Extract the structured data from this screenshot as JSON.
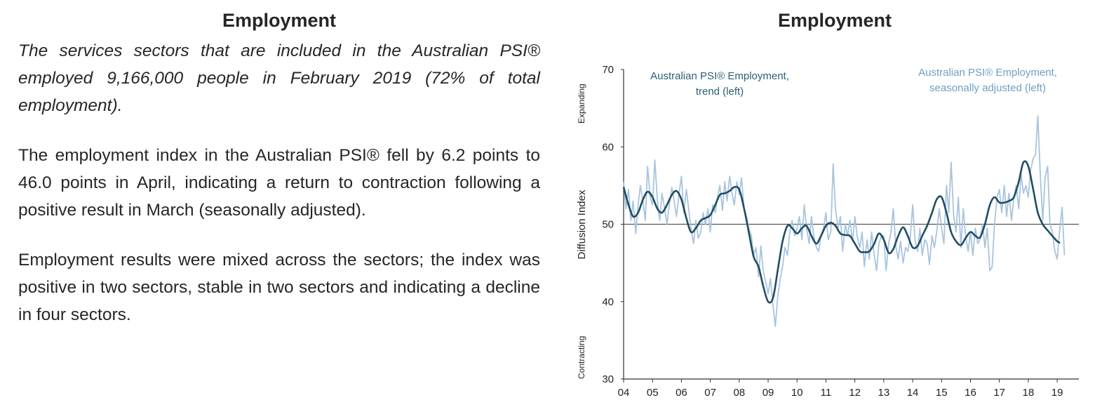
{
  "text_panel": {
    "title": "Employment",
    "para1": "The services sectors that are included in the Australian PSI® employed 9,166,000 people in February 2019 (72% of total employment).",
    "para2": "The employment index in the Australian PSI® fell by 6.2 points to 46.0 points in April, indicating a return to contraction following a positive result in March (seasonally adjusted).",
    "para3": "Employment results were mixed across the sectors; the index was positive in two sectors, stable in two sectors and indicating a decline in four sectors."
  },
  "chart_data": {
    "type": "line",
    "title": "Employment",
    "ylabel": "Diffusion Index",
    "side_labels": {
      "top": "Expanding",
      "bottom": "Contracting"
    },
    "ylim": [
      30,
      70
    ],
    "yticks": [
      "30",
      "40",
      "50",
      "60",
      "70"
    ],
    "xlim": [
      2004,
      2019.75
    ],
    "xticks": [
      {
        "x": 2004,
        "label": "04"
      },
      {
        "x": 2005,
        "label": "05"
      },
      {
        "x": 2006,
        "label": "06"
      },
      {
        "x": 2007,
        "label": "07"
      },
      {
        "x": 2008,
        "label": "08"
      },
      {
        "x": 2009,
        "label": "09"
      },
      {
        "x": 2010,
        "label": "10"
      },
      {
        "x": 2011,
        "label": "11"
      },
      {
        "x": 2012,
        "label": "12"
      },
      {
        "x": 2013,
        "label": "13"
      },
      {
        "x": 2014,
        "label": "14"
      },
      {
        "x": 2015,
        "label": "15"
      },
      {
        "x": 2016,
        "label": "16"
      },
      {
        "x": 2017,
        "label": "17"
      },
      {
        "x": 2018,
        "label": "18"
      },
      {
        "x": 2019,
        "label": "19"
      }
    ],
    "reference_line": 50,
    "colors": {
      "trend": "#1f4e63",
      "sa": "#a9c4df",
      "reference": "#555555"
    },
    "series": [
      {
        "name": "Australian PSI® Employment, seasonally adjusted (left)",
        "style": "thin-light",
        "points": [
          [
            2004.0,
            55.5
          ],
          [
            2004.08,
            52.0
          ],
          [
            2004.17,
            54.5
          ],
          [
            2004.25,
            50.5
          ],
          [
            2004.33,
            53.0
          ],
          [
            2004.42,
            48.8
          ],
          [
            2004.5,
            52.5
          ],
          [
            2004.58,
            55.0
          ],
          [
            2004.67,
            53.0
          ],
          [
            2004.75,
            50.5
          ],
          [
            2004.83,
            57.5
          ],
          [
            2004.92,
            53.5
          ],
          [
            2005.0,
            52.5
          ],
          [
            2005.08,
            58.3
          ],
          [
            2005.17,
            53.0
          ],
          [
            2005.25,
            50.5
          ],
          [
            2005.33,
            54.0
          ],
          [
            2005.42,
            52.0
          ],
          [
            2005.5,
            50.0
          ],
          [
            2005.58,
            52.5
          ],
          [
            2005.67,
            54.8
          ],
          [
            2005.75,
            53.0
          ],
          [
            2005.83,
            51.0
          ],
          [
            2005.92,
            54.0
          ],
          [
            2006.0,
            56.2
          ],
          [
            2006.08,
            51.5
          ],
          [
            2006.17,
            54.5
          ],
          [
            2006.25,
            52.0
          ],
          [
            2006.33,
            49.5
          ],
          [
            2006.42,
            47.5
          ],
          [
            2006.5,
            50.5
          ],
          [
            2006.58,
            48.2
          ],
          [
            2006.67,
            49.0
          ],
          [
            2006.75,
            51.5
          ],
          [
            2006.83,
            50.0
          ],
          [
            2006.92,
            52.0
          ],
          [
            2007.0,
            49.0
          ],
          [
            2007.08,
            52.5
          ],
          [
            2007.17,
            51.5
          ],
          [
            2007.25,
            53.5
          ],
          [
            2007.33,
            55.0
          ],
          [
            2007.42,
            51.8
          ],
          [
            2007.5,
            55.5
          ],
          [
            2007.58,
            53.0
          ],
          [
            2007.67,
            56.2
          ],
          [
            2007.75,
            54.0
          ],
          [
            2007.83,
            52.5
          ],
          [
            2007.92,
            55.5
          ],
          [
            2008.0,
            53.8
          ],
          [
            2008.08,
            56.0
          ],
          [
            2008.17,
            52.0
          ],
          [
            2008.25,
            51.0
          ],
          [
            2008.33,
            49.5
          ],
          [
            2008.42,
            48.5
          ],
          [
            2008.5,
            46.0
          ],
          [
            2008.58,
            47.0
          ],
          [
            2008.67,
            43.2
          ],
          [
            2008.75,
            47.2
          ],
          [
            2008.83,
            44.0
          ],
          [
            2008.92,
            42.5
          ],
          [
            2009.0,
            41.0
          ],
          [
            2009.08,
            43.0
          ],
          [
            2009.17,
            39.5
          ],
          [
            2009.25,
            36.8
          ],
          [
            2009.33,
            40.5
          ],
          [
            2009.42,
            43.0
          ],
          [
            2009.5,
            44.5
          ],
          [
            2009.58,
            47.0
          ],
          [
            2009.67,
            46.0
          ],
          [
            2009.75,
            49.0
          ],
          [
            2009.83,
            50.5
          ],
          [
            2009.92,
            48.5
          ],
          [
            2010.0,
            49.5
          ],
          [
            2010.08,
            51.0
          ],
          [
            2010.17,
            48.0
          ],
          [
            2010.25,
            52.5
          ],
          [
            2010.33,
            49.5
          ],
          [
            2010.42,
            47.5
          ],
          [
            2010.5,
            51.0
          ],
          [
            2010.58,
            48.5
          ],
          [
            2010.67,
            47.0
          ],
          [
            2010.75,
            46.5
          ],
          [
            2010.83,
            48.5
          ],
          [
            2010.92,
            49.5
          ],
          [
            2011.0,
            51.5
          ],
          [
            2011.08,
            48.0
          ],
          [
            2011.17,
            49.0
          ],
          [
            2011.25,
            57.8
          ],
          [
            2011.33,
            52.0
          ],
          [
            2011.42,
            49.5
          ],
          [
            2011.5,
            51.0
          ],
          [
            2011.58,
            46.5
          ],
          [
            2011.67,
            50.0
          ],
          [
            2011.75,
            48.5
          ],
          [
            2011.83,
            50.5
          ],
          [
            2011.92,
            47.8
          ],
          [
            2012.0,
            51.0
          ],
          [
            2012.08,
            48.5
          ],
          [
            2012.17,
            47.0
          ],
          [
            2012.25,
            49.0
          ],
          [
            2012.33,
            44.5
          ],
          [
            2012.42,
            48.0
          ],
          [
            2012.5,
            45.5
          ],
          [
            2012.58,
            49.0
          ],
          [
            2012.67,
            46.0
          ],
          [
            2012.75,
            44.0
          ],
          [
            2012.83,
            47.5
          ],
          [
            2012.92,
            48.5
          ],
          [
            2013.0,
            48.5
          ],
          [
            2013.08,
            44.0
          ],
          [
            2013.17,
            47.5
          ],
          [
            2013.25,
            49.0
          ],
          [
            2013.33,
            52.0
          ],
          [
            2013.42,
            47.0
          ],
          [
            2013.5,
            45.5
          ],
          [
            2013.58,
            47.8
          ],
          [
            2013.67,
            45.0
          ],
          [
            2013.75,
            47.0
          ],
          [
            2013.83,
            46.5
          ],
          [
            2013.92,
            48.5
          ],
          [
            2014.0,
            52.5
          ],
          [
            2014.08,
            48.0
          ],
          [
            2014.17,
            46.5
          ],
          [
            2014.25,
            49.5
          ],
          [
            2014.33,
            46.0
          ],
          [
            2014.42,
            48.0
          ],
          [
            2014.5,
            47.5
          ],
          [
            2014.58,
            44.8
          ],
          [
            2014.67,
            48.5
          ],
          [
            2014.75,
            47.0
          ],
          [
            2014.83,
            49.0
          ],
          [
            2014.92,
            52.0
          ],
          [
            2015.0,
            49.5
          ],
          [
            2015.08,
            47.5
          ],
          [
            2015.17,
            55.0
          ],
          [
            2015.25,
            51.5
          ],
          [
            2015.33,
            58.0
          ],
          [
            2015.42,
            51.0
          ],
          [
            2015.5,
            49.0
          ],
          [
            2015.58,
            53.5
          ],
          [
            2015.67,
            47.0
          ],
          [
            2015.75,
            52.0
          ],
          [
            2015.83,
            48.5
          ],
          [
            2015.92,
            46.5
          ],
          [
            2016.0,
            49.0
          ],
          [
            2016.08,
            46.0
          ],
          [
            2016.17,
            49.5
          ],
          [
            2016.25,
            47.5
          ],
          [
            2016.33,
            48.0
          ],
          [
            2016.42,
            50.0
          ],
          [
            2016.5,
            47.0
          ],
          [
            2016.58,
            49.5
          ],
          [
            2016.67,
            44.0
          ],
          [
            2016.75,
            44.5
          ],
          [
            2016.83,
            50.0
          ],
          [
            2016.92,
            53.5
          ],
          [
            2017.0,
            54.5
          ],
          [
            2017.08,
            51.5
          ],
          [
            2017.17,
            55.0
          ],
          [
            2017.25,
            51.0
          ],
          [
            2017.33,
            54.0
          ],
          [
            2017.42,
            50.5
          ],
          [
            2017.5,
            53.5
          ],
          [
            2017.58,
            55.0
          ],
          [
            2017.67,
            52.0
          ],
          [
            2017.75,
            56.5
          ],
          [
            2017.83,
            54.0
          ],
          [
            2017.92,
            55.0
          ],
          [
            2018.0,
            53.5
          ],
          [
            2018.08,
            57.0
          ],
          [
            2018.17,
            58.5
          ],
          [
            2018.25,
            59.0
          ],
          [
            2018.33,
            64.0
          ],
          [
            2018.42,
            56.0
          ],
          [
            2018.5,
            50.5
          ],
          [
            2018.58,
            56.0
          ],
          [
            2018.67,
            57.5
          ],
          [
            2018.75,
            50.0
          ],
          [
            2018.83,
            49.0
          ],
          [
            2018.92,
            46.5
          ],
          [
            2019.0,
            45.5
          ],
          [
            2019.08,
            49.0
          ],
          [
            2019.17,
            52.2
          ],
          [
            2019.25,
            46.0
          ]
        ]
      },
      {
        "name": "Australian PSI® Employment, trend (left)",
        "style": "thick-dark",
        "points": [
          [
            2004.0,
            54.8
          ],
          [
            2004.17,
            52.5
          ],
          [
            2004.33,
            51.0
          ],
          [
            2004.5,
            51.5
          ],
          [
            2004.67,
            53.2
          ],
          [
            2004.83,
            54.2
          ],
          [
            2005.0,
            53.5
          ],
          [
            2005.17,
            52.0
          ],
          [
            2005.33,
            51.5
          ],
          [
            2005.5,
            52.5
          ],
          [
            2005.67,
            53.8
          ],
          [
            2005.83,
            54.3
          ],
          [
            2006.0,
            53.2
          ],
          [
            2006.17,
            50.8
          ],
          [
            2006.33,
            49.0
          ],
          [
            2006.5,
            49.5
          ],
          [
            2006.67,
            50.5
          ],
          [
            2006.83,
            50.8
          ],
          [
            2007.0,
            51.2
          ],
          [
            2007.17,
            52.5
          ],
          [
            2007.33,
            53.8
          ],
          [
            2007.5,
            54.0
          ],
          [
            2007.67,
            54.3
          ],
          [
            2007.83,
            54.8
          ],
          [
            2008.0,
            54.5
          ],
          [
            2008.17,
            52.0
          ],
          [
            2008.33,
            49.0
          ],
          [
            2008.5,
            45.8
          ],
          [
            2008.67,
            44.5
          ],
          [
            2008.83,
            42.0
          ],
          [
            2009.0,
            40.0
          ],
          [
            2009.17,
            40.5
          ],
          [
            2009.33,
            44.0
          ],
          [
            2009.5,
            47.8
          ],
          [
            2009.67,
            49.8
          ],
          [
            2009.83,
            49.5
          ],
          [
            2010.0,
            48.8
          ],
          [
            2010.17,
            49.5
          ],
          [
            2010.33,
            49.8
          ],
          [
            2010.5,
            48.5
          ],
          [
            2010.67,
            47.5
          ],
          [
            2010.83,
            48.5
          ],
          [
            2011.0,
            49.8
          ],
          [
            2011.17,
            50.2
          ],
          [
            2011.33,
            49.8
          ],
          [
            2011.5,
            48.8
          ],
          [
            2011.67,
            48.6
          ],
          [
            2011.83,
            48.5
          ],
          [
            2012.0,
            47.5
          ],
          [
            2012.17,
            46.5
          ],
          [
            2012.33,
            46.4
          ],
          [
            2012.5,
            46.5
          ],
          [
            2012.67,
            47.5
          ],
          [
            2012.83,
            48.8
          ],
          [
            2013.0,
            48.0
          ],
          [
            2013.17,
            46.3
          ],
          [
            2013.33,
            46.8
          ],
          [
            2013.5,
            48.5
          ],
          [
            2013.67,
            49.6
          ],
          [
            2013.83,
            48.5
          ],
          [
            2014.0,
            47.0
          ],
          [
            2014.17,
            47.2
          ],
          [
            2014.33,
            48.5
          ],
          [
            2014.5,
            49.8
          ],
          [
            2014.67,
            51.5
          ],
          [
            2014.83,
            53.2
          ],
          [
            2015.0,
            53.5
          ],
          [
            2015.17,
            51.5
          ],
          [
            2015.33,
            49.0
          ],
          [
            2015.5,
            47.8
          ],
          [
            2015.67,
            47.3
          ],
          [
            2015.83,
            48.2
          ],
          [
            2016.0,
            49.0
          ],
          [
            2016.17,
            48.5
          ],
          [
            2016.33,
            48.3
          ],
          [
            2016.5,
            50.0
          ],
          [
            2016.67,
            52.5
          ],
          [
            2016.83,
            53.5
          ],
          [
            2017.0,
            52.8
          ],
          [
            2017.17,
            52.8
          ],
          [
            2017.33,
            53.0
          ],
          [
            2017.5,
            53.5
          ],
          [
            2017.67,
            55.5
          ],
          [
            2017.83,
            58.0
          ],
          [
            2018.0,
            57.5
          ],
          [
            2018.17,
            54.5
          ],
          [
            2018.33,
            51.5
          ],
          [
            2018.5,
            50.0
          ],
          [
            2018.67,
            49.2
          ],
          [
            2018.83,
            48.5
          ],
          [
            2019.0,
            47.8
          ],
          [
            2019.1,
            47.6
          ]
        ]
      }
    ],
    "legend": {
      "trend": {
        "line1": "Australian PSI® Employment,",
        "line2": "trend (left)"
      },
      "sa": {
        "line1": "Australian PSI® Employment,",
        "line2": "seasonally adjusted (left)"
      }
    }
  }
}
